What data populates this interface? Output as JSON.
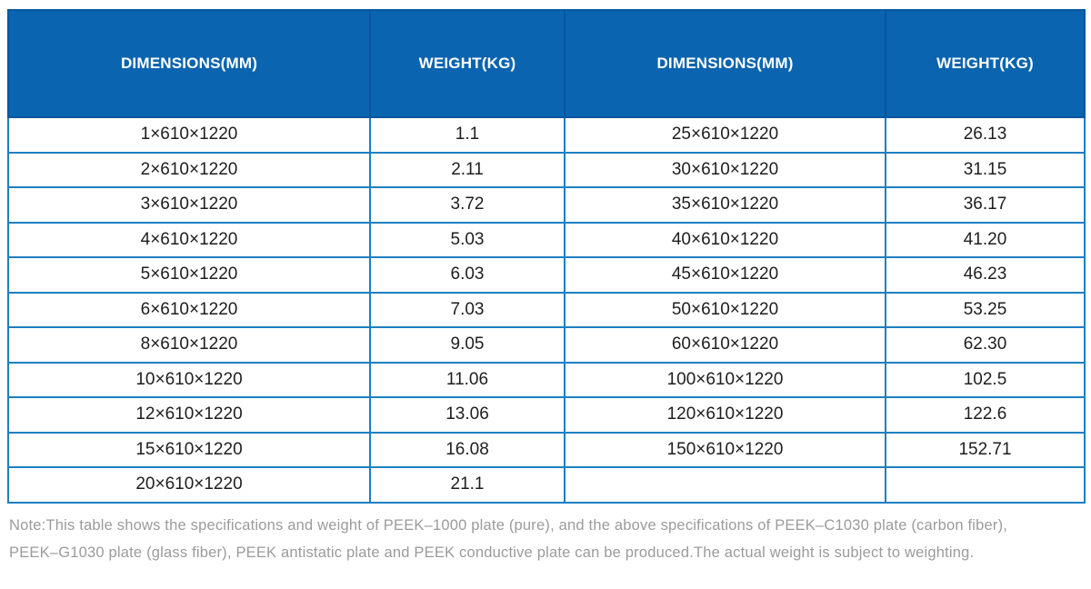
{
  "table": {
    "columns": [
      {
        "label": "DIMENSIONS(MM)"
      },
      {
        "label": "WEIGHT(KG)"
      },
      {
        "label": "DIMENSIONS(MM)"
      },
      {
        "label": "WEIGHT(KG)"
      }
    ],
    "rows": [
      [
        "1×610×1220",
        "1.1",
        "25×610×1220",
        "26.13"
      ],
      [
        "2×610×1220",
        "2.11",
        "30×610×1220",
        "31.15"
      ],
      [
        "3×610×1220",
        "3.72",
        "35×610×1220",
        "36.17"
      ],
      [
        "4×610×1220",
        "5.03",
        "40×610×1220",
        "41.20"
      ],
      [
        "5×610×1220",
        "6.03",
        "45×610×1220",
        "46.23"
      ],
      [
        "6×610×1220",
        "7.03",
        "50×610×1220",
        "53.25"
      ],
      [
        "8×610×1220",
        "9.05",
        "60×610×1220",
        "62.30"
      ],
      [
        "10×610×1220",
        "11.06",
        "100×610×1220",
        "102.5"
      ],
      [
        "12×610×1220",
        "13.06",
        "120×610×1220",
        "122.6"
      ],
      [
        "15×610×1220",
        "16.08",
        "150×610×1220",
        "152.71"
      ],
      [
        "20×610×1220",
        "21.1",
        "",
        ""
      ]
    ]
  },
  "note": {
    "lines": [
      "Note:This table shows the specifications and weight of PEEK–1000 plate (pure), and the above specifications of PEEK–C1030 plate (carbon fiber),",
      "PEEK–G1030 plate (glass fiber), PEEK antistatic plate and PEEK conductive plate can be produced.The actual weight is subject to weighting."
    ]
  },
  "colors": {
    "header_bg": "#0a64af",
    "header_divider": "#0857a0",
    "header_text": "#ffffff",
    "cell_border": "#1b7fc2",
    "cell_text": "#1e1e1e",
    "note_text": "#9b9b9b"
  }
}
